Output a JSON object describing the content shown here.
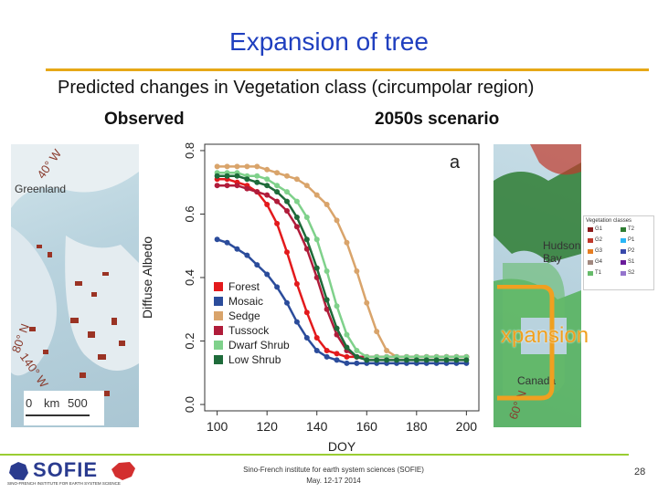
{
  "slide": {
    "title": "Expansion of tree",
    "subtitle": "Predicted changes in Vegetation class (circumpolar region)",
    "left_heading": "Observed",
    "right_heading": "2050s scenario",
    "expansion_label": "xpansion",
    "page_number": "28",
    "colors": {
      "title": "#1f3fbf",
      "title_rule": "#e6a817",
      "footer_rule": "#9acd32",
      "expansion": "#f0a020"
    }
  },
  "left_map": {
    "label_greenland": "Greenland",
    "lat_40w": "40° W",
    "lat_80n": "80° N",
    "lat_140w": "140° W",
    "scale_km": "km",
    "scale_0": "0",
    "scale_500": "500"
  },
  "right_map": {
    "label_hudson": "Hudson Bay",
    "label_canada": "Canada",
    "lat_60n": "60° N",
    "legend_title": "Vegetation classes",
    "legend_items": [
      {
        "code": "G1",
        "color": "#8b1a1a"
      },
      {
        "code": "T2",
        "color": "#2e7d32"
      },
      {
        "code": "G2",
        "color": "#c0392b"
      },
      {
        "code": "P1",
        "color": "#29b6f6"
      },
      {
        "code": "G3",
        "color": "#e67e22"
      },
      {
        "code": "P2",
        "color": "#3949ab"
      },
      {
        "code": "G4",
        "color": "#a1887f"
      },
      {
        "code": "S1",
        "color": "#6a1b9a"
      },
      {
        "code": "T1",
        "color": "#66bb6a"
      },
      {
        "code": "S2",
        "color": "#9575cd"
      }
    ]
  },
  "footer": {
    "logo_text": "SOFIE",
    "logo_sub": "SINO-FRENCH INSTITUTE FOR EARTH SYSTEM SCIENCE",
    "line1": "Sino-French institute for earth system sciences (SOFIE)",
    "line2": "May. 12-17 2014"
  },
  "chart_data": {
    "type": "line",
    "panel_label": "a",
    "xlabel": "DOY",
    "ylabel": "Diffuse Albedo",
    "xlim": [
      95,
      205
    ],
    "ylim": [
      -0.02,
      0.82
    ],
    "xticks": [
      100,
      120,
      140,
      160,
      180,
      200
    ],
    "yticks": [
      0.0,
      0.2,
      0.4,
      0.6,
      0.8
    ],
    "x": [
      100,
      104,
      108,
      112,
      116,
      120,
      124,
      128,
      132,
      136,
      140,
      144,
      148,
      152,
      156,
      160,
      164,
      168,
      172,
      176,
      180,
      184,
      188,
      192,
      196,
      200
    ],
    "legend_position": "bottom-left",
    "series": [
      {
        "name": "Forest",
        "color": "#e31a1c",
        "values": [
          0.71,
          0.71,
          0.7,
          0.69,
          0.67,
          0.63,
          0.57,
          0.48,
          0.38,
          0.29,
          0.21,
          0.17,
          0.16,
          0.15,
          0.15,
          0.15,
          0.15,
          0.15,
          0.15,
          0.15,
          0.15,
          0.15,
          0.15,
          0.15,
          0.15,
          0.15
        ]
      },
      {
        "name": "Mosaic",
        "color": "#2b4c9b",
        "values": [
          0.52,
          0.51,
          0.49,
          0.47,
          0.44,
          0.41,
          0.37,
          0.32,
          0.26,
          0.21,
          0.17,
          0.15,
          0.14,
          0.13,
          0.13,
          0.13,
          0.13,
          0.13,
          0.13,
          0.13,
          0.13,
          0.13,
          0.13,
          0.13,
          0.13,
          0.13
        ]
      },
      {
        "name": "Sedge",
        "color": "#d9a46b",
        "values": [
          0.75,
          0.75,
          0.75,
          0.75,
          0.75,
          0.74,
          0.73,
          0.72,
          0.71,
          0.69,
          0.66,
          0.63,
          0.58,
          0.51,
          0.42,
          0.32,
          0.23,
          0.17,
          0.15,
          0.15,
          0.15,
          0.15,
          0.15,
          0.15,
          0.15,
          0.15
        ]
      },
      {
        "name": "Tussock",
        "color": "#b01c3a",
        "values": [
          0.69,
          0.69,
          0.69,
          0.68,
          0.67,
          0.66,
          0.64,
          0.61,
          0.56,
          0.49,
          0.4,
          0.3,
          0.22,
          0.17,
          0.15,
          0.15,
          0.15,
          0.15,
          0.15,
          0.15,
          0.15,
          0.15,
          0.15,
          0.15,
          0.15,
          0.15
        ]
      },
      {
        "name": "Dwarf Shrub",
        "color": "#7fd18b",
        "values": [
          0.73,
          0.73,
          0.73,
          0.72,
          0.72,
          0.71,
          0.69,
          0.67,
          0.64,
          0.59,
          0.52,
          0.42,
          0.31,
          0.22,
          0.17,
          0.15,
          0.15,
          0.15,
          0.15,
          0.15,
          0.15,
          0.15,
          0.15,
          0.15,
          0.15,
          0.15
        ]
      },
      {
        "name": "Low Shrub",
        "color": "#1e6b3a",
        "values": [
          0.72,
          0.72,
          0.72,
          0.71,
          0.7,
          0.69,
          0.67,
          0.64,
          0.59,
          0.52,
          0.43,
          0.33,
          0.24,
          0.18,
          0.15,
          0.14,
          0.14,
          0.14,
          0.14,
          0.14,
          0.14,
          0.14,
          0.14,
          0.14,
          0.14,
          0.14
        ]
      }
    ]
  }
}
